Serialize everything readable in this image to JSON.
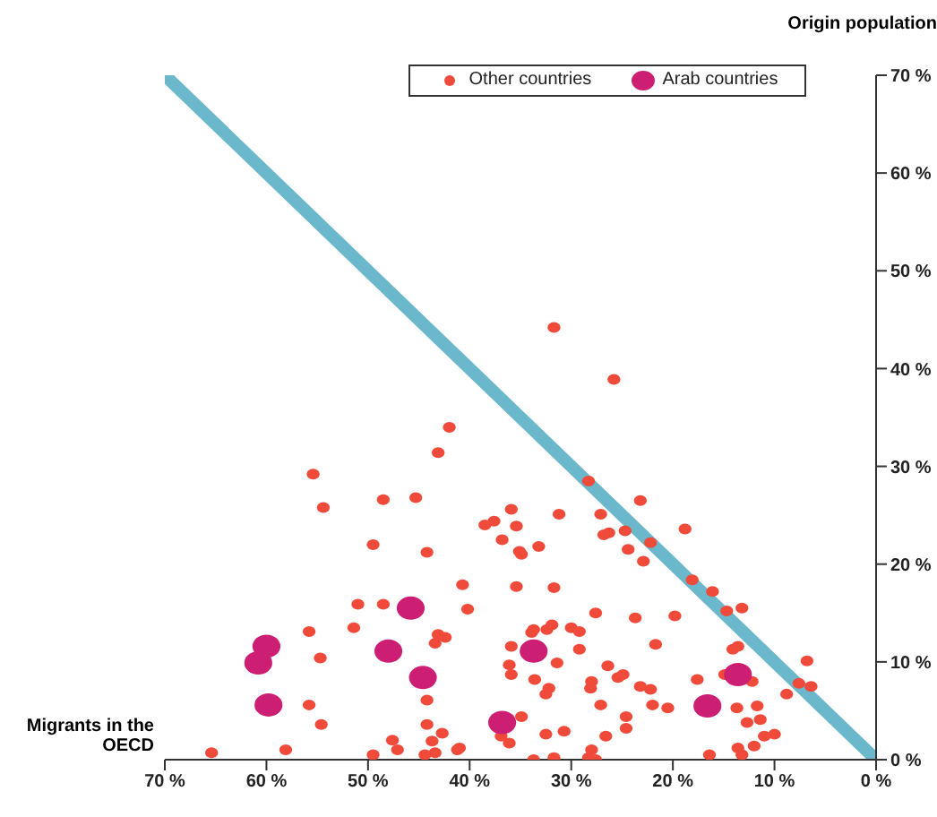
{
  "chart_data": {
    "type": "scatter",
    "xlabel": "Migrants in the OECD",
    "ylabel": "Origin population",
    "xlim": [
      70,
      0
    ],
    "ylim": [
      0,
      70
    ],
    "xticks": [
      {
        "value": 70,
        "label": "70 %"
      },
      {
        "value": 60,
        "label": "60 %"
      },
      {
        "value": 50,
        "label": "50 %"
      },
      {
        "value": 40,
        "label": "40 %"
      },
      {
        "value": 30,
        "label": "30 %"
      },
      {
        "value": 20,
        "label": "20 %"
      },
      {
        "value": 10,
        "label": "10 %"
      },
      {
        "value": 0,
        "label": "0 %"
      }
    ],
    "yticks": [
      {
        "value": 0,
        "label": "0 %"
      },
      {
        "value": 10,
        "label": "10 %"
      },
      {
        "value": 20,
        "label": "20 %"
      },
      {
        "value": 30,
        "label": "30 %"
      },
      {
        "value": 40,
        "label": "40 %"
      },
      {
        "value": 50,
        "label": "50 %"
      },
      {
        "value": 60,
        "label": "60 %"
      },
      {
        "value": 70,
        "label": "70 %"
      }
    ],
    "legend": "top",
    "marker": "circle",
    "series": [
      {
        "type": "line",
        "marker": "none",
        "color": "#6bb7cb",
        "x": [
          70,
          0
        ],
        "values": [
          70,
          0
        ]
      },
      {
        "name": "Other countries",
        "color": "#f04a3a",
        "x": [
          31.7,
          25.8,
          42.0,
          43.1,
          55.4,
          54.4,
          48.5,
          45.3,
          49.5,
          44.2,
          38.5,
          37.6,
          36.8,
          40.7,
          40.2,
          51.0,
          48.5,
          55.8,
          51.4,
          43.1,
          42.4,
          43.4,
          54.7,
          55.8,
          44.2,
          54.6,
          44.2,
          42.7,
          47.6,
          43.7,
          47.1,
          41.0,
          41.2,
          43.4,
          44.4,
          49.5,
          58.1,
          65.4,
          28.3,
          23.2,
          35.9,
          31.2,
          27.1,
          35.4,
          18.8,
          26.8,
          26.3,
          24.7,
          33.2,
          22.2,
          35.1,
          34.9,
          24.4,
          22.9,
          18.1,
          35.4,
          31.7,
          16.1,
          14.7,
          13.2,
          27.6,
          23.7,
          19.8,
          33.7,
          33.9,
          32.4,
          31.9,
          30.0,
          29.2,
          35.9,
          29.2,
          21.7,
          14.1,
          13.6,
          6.8,
          36.1,
          31.4,
          26.4,
          35.9,
          33.6,
          25.4,
          24.9,
          28.0,
          28.1,
          17.6,
          14.9,
          12.2,
          7.6,
          6.4,
          8.8,
          32.2,
          32.5,
          23.2,
          22.2,
          27.1,
          22.0,
          20.5,
          13.7,
          11.7,
          34.9,
          24.6,
          12.7,
          11.4,
          24.6,
          36.1,
          36.9,
          32.5,
          30.7,
          26.6,
          11.0,
          10.0,
          12.0,
          13.6,
          28.0,
          28.3,
          27.6,
          16.4,
          13.2,
          33.7,
          31.7
        ],
        "values": [
          44.2,
          38.9,
          34.0,
          31.4,
          29.2,
          25.8,
          26.6,
          26.8,
          22.0,
          21.2,
          24.0,
          24.4,
          22.5,
          17.9,
          15.4,
          15.9,
          15.9,
          13.1,
          13.5,
          12.8,
          12.5,
          11.9,
          10.4,
          5.6,
          6.1,
          3.6,
          3.6,
          2.7,
          2.0,
          1.9,
          1.0,
          1.2,
          1.0,
          0.7,
          0.5,
          0.5,
          1.0,
          0.7,
          28.5,
          26.5,
          25.6,
          25.1,
          25.1,
          23.9,
          23.6,
          23.0,
          23.2,
          23.4,
          21.8,
          22.2,
          21.3,
          21.0,
          21.5,
          20.3,
          18.4,
          17.7,
          17.6,
          17.2,
          15.2,
          15.5,
          15.0,
          14.5,
          14.7,
          13.3,
          13.0,
          13.3,
          13.8,
          13.5,
          13.1,
          11.6,
          11.3,
          11.8,
          11.3,
          11.6,
          10.1,
          9.7,
          9.9,
          9.6,
          8.7,
          8.2,
          8.4,
          8.7,
          8.0,
          7.3,
          8.2,
          8.7,
          8.0,
          7.8,
          7.5,
          6.7,
          7.3,
          6.7,
          7.5,
          7.2,
          5.6,
          5.6,
          5.3,
          5.3,
          5.5,
          4.4,
          4.4,
          3.8,
          4.1,
          3.2,
          1.7,
          2.4,
          2.6,
          2.9,
          2.4,
          2.4,
          2.6,
          1.4,
          1.2,
          1.0,
          0.2,
          0.0,
          0.5,
          0.5,
          0.0,
          0.2
        ]
      },
      {
        "name": "Arab countries",
        "color": "#cc1f73",
        "x": [
          60.0,
          60.8,
          45.8,
          48.0,
          44.6,
          59.8,
          33.7,
          36.8,
          16.6,
          13.6
        ],
        "values": [
          11.6,
          9.9,
          15.5,
          11.1,
          8.4,
          5.6,
          11.1,
          3.8,
          5.5,
          8.7
        ]
      }
    ]
  }
}
